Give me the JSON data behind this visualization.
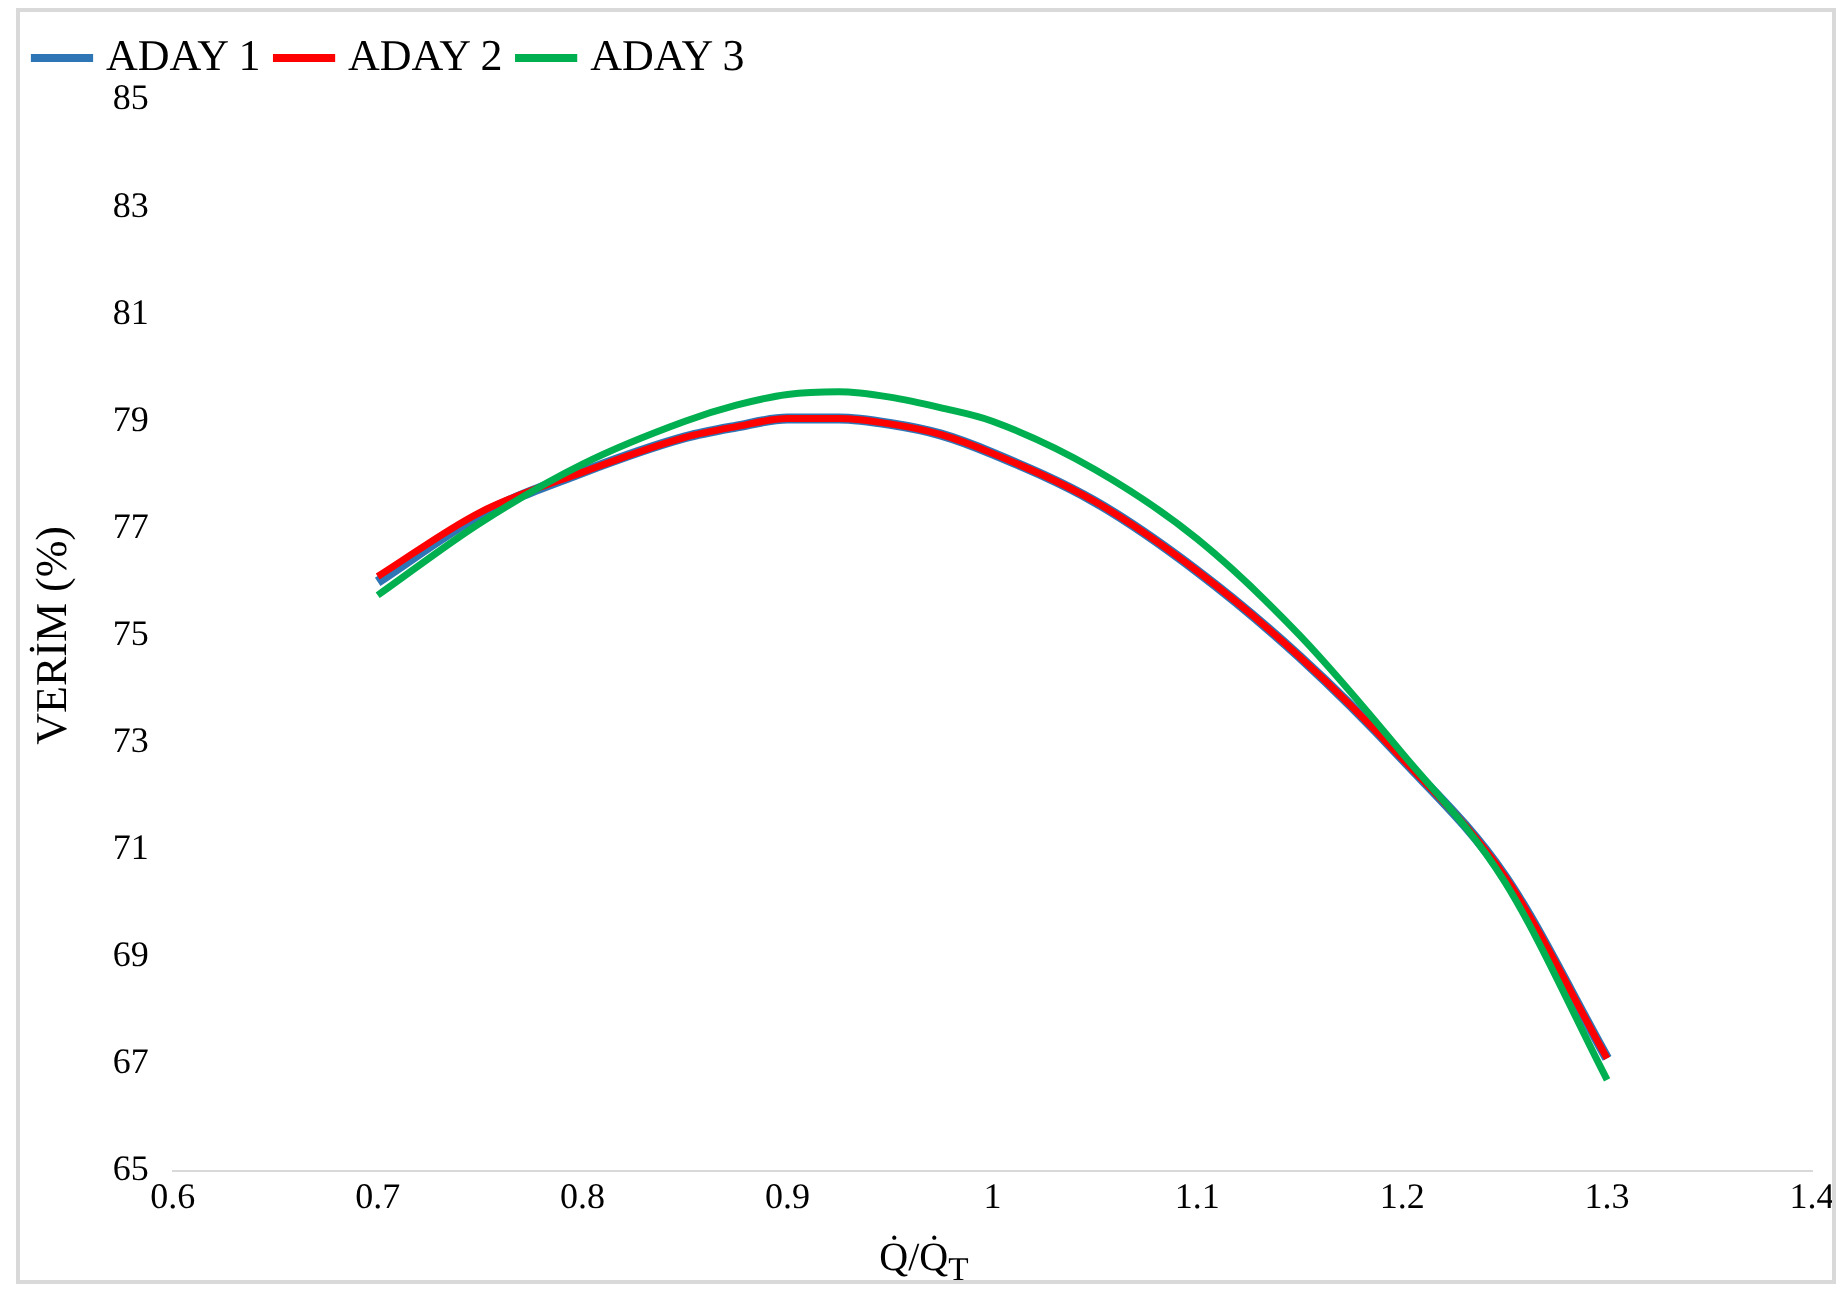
{
  "chart_data": {
    "type": "line",
    "xlabel": "Q̇/Q̇$_{T}$",
    "ylabel": "VERİM (%)",
    "x": [
      0.7,
      0.75,
      0.8,
      0.85,
      0.875,
      0.9,
      0.925,
      0.95,
      0.975,
      1.0,
      1.05,
      1.1,
      1.15,
      1.2,
      1.25,
      1.3
    ],
    "series": [
      {
        "name": "ADAY 1",
        "color": "#2e75b6",
        "values": [
          76.0,
          77.25,
          78.05,
          78.7,
          78.9,
          79.05,
          79.05,
          78.95,
          78.75,
          78.4,
          77.5,
          76.2,
          74.6,
          72.7,
          70.5,
          67.1
        ]
      },
      {
        "name": "ADAY 2",
        "color": "#ff0000",
        "values": [
          76.1,
          77.3,
          78.05,
          78.7,
          78.9,
          79.05,
          79.05,
          78.95,
          78.75,
          78.4,
          77.5,
          76.2,
          74.6,
          72.7,
          70.5,
          67.1
        ]
      },
      {
        "name": "ADAY 3",
        "color": "#00b050",
        "values": [
          75.75,
          77.1,
          78.2,
          79.0,
          79.3,
          79.5,
          79.55,
          79.45,
          79.25,
          79.0,
          78.1,
          76.8,
          75.0,
          72.8,
          70.4,
          66.7
        ]
      }
    ],
    "xlim": [
      0.6,
      1.4
    ],
    "xticks": [
      0.6,
      0.7,
      0.8,
      0.9,
      1,
      1.1,
      1.2,
      1.3,
      1.4
    ],
    "ylim": [
      65,
      85
    ],
    "yticks": [
      65,
      67,
      69,
      71,
      73,
      75,
      77,
      79,
      81,
      83,
      85
    ],
    "grid": false,
    "legend": "top left",
    "marker": "none",
    "line_style": "solid"
  }
}
